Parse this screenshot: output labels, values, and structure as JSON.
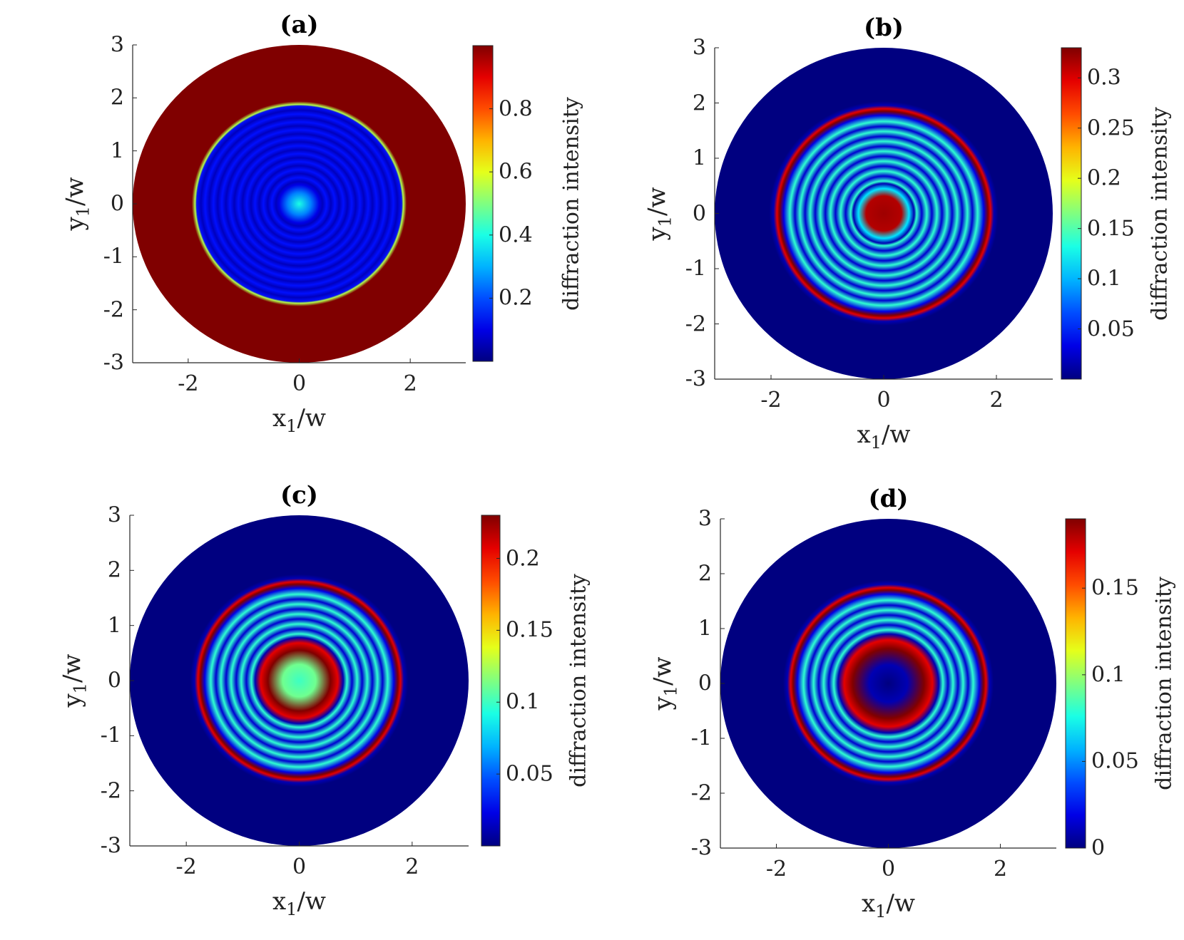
{
  "chart_data": [
    {
      "panel": "a",
      "title": "(a)",
      "type": "heatmap",
      "xlabel": "x_1/w",
      "ylabel": "y_1/w",
      "xlim": [
        -3,
        3
      ],
      "ylim": [
        -3,
        3
      ],
      "xticks": [
        "-2",
        "0",
        "2"
      ],
      "yticks": [
        "3",
        "2",
        "1",
        "0",
        "-1",
        "-2",
        "-3"
      ],
      "colorbar": {
        "label": "diffraction intensity",
        "range": [
          0,
          1.0
        ],
        "ticks": [
          "0.2",
          "0.4",
          "0.6",
          "0.8"
        ]
      },
      "pattern": {
        "outer_value": 1.0,
        "edge_radius": 1.95,
        "center_value": 0.4,
        "inner_value": 0.12
      }
    },
    {
      "panel": "b",
      "title": "(b)",
      "type": "heatmap",
      "xlabel": "x_1/w",
      "ylabel": "y_1/w",
      "xlim": [
        -3,
        3
      ],
      "ylim": [
        -3,
        3
      ],
      "xticks": [
        "-2",
        "0",
        "2"
      ],
      "yticks": [
        "3",
        "2",
        "1",
        "0",
        "-1",
        "-2",
        "-3"
      ],
      "colorbar": {
        "label": "diffraction intensity",
        "range": [
          0,
          0.33
        ],
        "ticks": [
          "0.05",
          "0.1",
          "0.15",
          "0.2",
          "0.25",
          "0.3"
        ]
      },
      "pattern": {
        "bright_ring_radius": 1.85,
        "center_value": 0.32,
        "center_radius": 0.45
      }
    },
    {
      "panel": "c",
      "title": "(c)",
      "type": "heatmap",
      "xlabel": "x_1/w",
      "ylabel": "y_1/w",
      "xlim": [
        -3,
        3
      ],
      "ylim": [
        -3,
        3
      ],
      "xticks": [
        "-2",
        "0",
        "2"
      ],
      "yticks": [
        "3",
        "2",
        "1",
        "0",
        "-1",
        "-2",
        "-3"
      ],
      "colorbar": {
        "label": "diffraction intensity",
        "range": [
          0,
          0.23
        ],
        "ticks": [
          "0.05",
          "0.1",
          "0.15",
          "0.2"
        ]
      },
      "pattern": {
        "bright_ring_radius": 1.75,
        "center_value": 0.1,
        "inner_ring_radius": 0.65
      }
    },
    {
      "panel": "d",
      "title": "(d)",
      "type": "heatmap",
      "xlabel": "x_1/w",
      "ylabel": "y_1/w",
      "xlim": [
        -3,
        3
      ],
      "ylim": [
        -3,
        3
      ],
      "xticks": [
        "-2",
        "0",
        "2"
      ],
      "yticks": [
        "3",
        "2",
        "1",
        "0",
        "-1",
        "-2",
        "-3"
      ],
      "colorbar": {
        "label": "diffraction intensity",
        "range": [
          0,
          0.19
        ],
        "ticks": [
          "0",
          "0.05",
          "0.1",
          "0.15"
        ]
      },
      "pattern": {
        "bright_ring_radius": 1.7,
        "center_value": 0.0,
        "inner_ring_radius": 0.75
      }
    }
  ]
}
